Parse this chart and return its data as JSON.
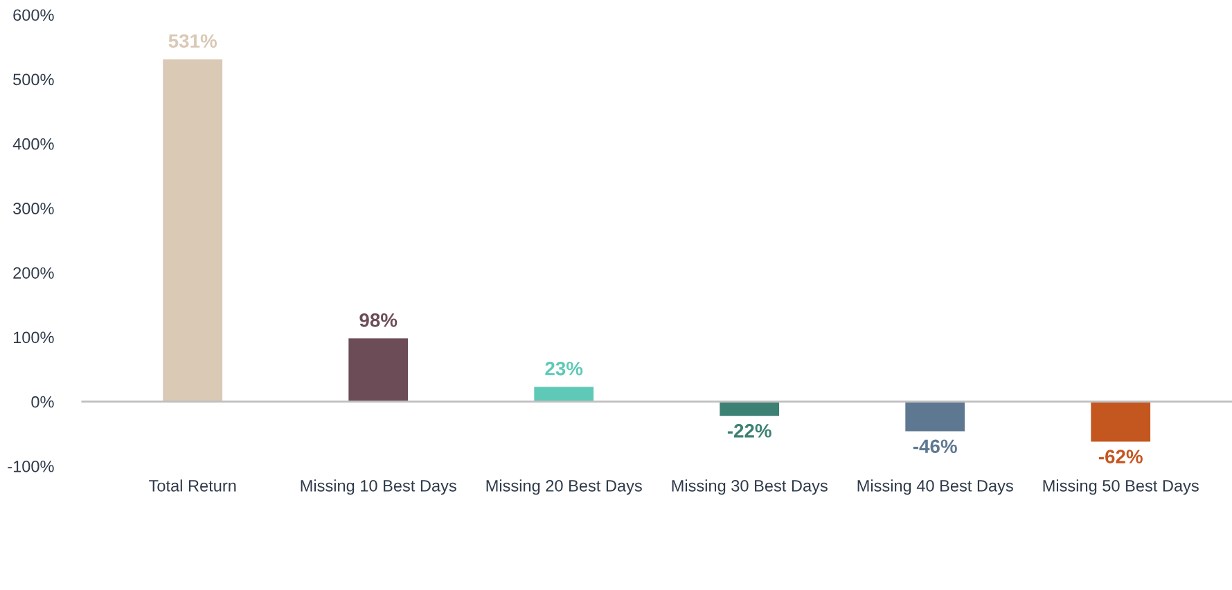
{
  "chart_data": {
    "type": "bar",
    "categories": [
      "Total Return",
      "Missing 10 Best Days",
      "Missing 20 Best Days",
      "Missing 30 Best Days",
      "Missing 40 Best Days",
      "Missing 50 Best Days"
    ],
    "values": [
      531,
      98,
      23,
      -22,
      -46,
      -62
    ],
    "value_labels": [
      "531%",
      "98%",
      "23%",
      "-22%",
      "-46%",
      "-62%"
    ],
    "colors": [
      "#d9c9b5",
      "#6b4c57",
      "#5ec9b6",
      "#3d8074",
      "#5f7891",
      "#c4561f"
    ],
    "ylim": [
      -100,
      600
    ],
    "yticks": [
      {
        "value": -100,
        "label": "-100%"
      },
      {
        "value": 0,
        "label": "0%"
      },
      {
        "value": 100,
        "label": "100%"
      },
      {
        "value": 200,
        "label": "200%"
      },
      {
        "value": 300,
        "label": "300%"
      },
      {
        "value": 400,
        "label": "400%"
      },
      {
        "value": 500,
        "label": "500%"
      },
      {
        "value": 600,
        "label": "600%"
      }
    ],
    "ref_lines": [
      {
        "axis": "y",
        "value": 0,
        "label": null,
        "color": "#bfbfbf"
      }
    ],
    "grid": false,
    "legend": false
  }
}
